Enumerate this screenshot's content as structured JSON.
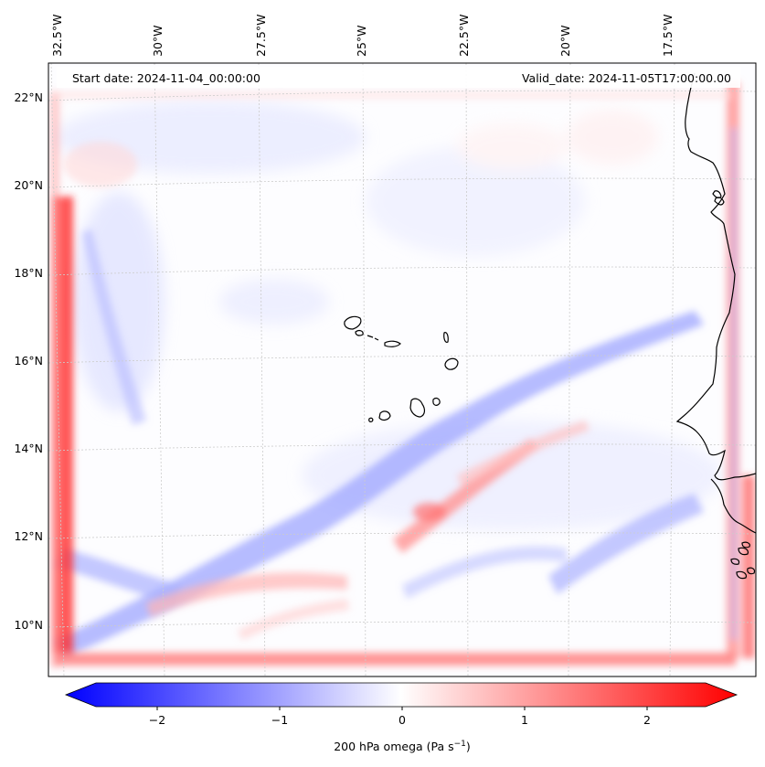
{
  "header": {
    "start_date": "Start date: 2024-11-04_00:00:00",
    "valid_date": "Valid_date: 2024-11-05T17:00:00.00"
  },
  "longitude_labels": [
    "32.5°W",
    "30°W",
    "27.5°W",
    "25°W",
    "22.5°W",
    "20°W",
    "17.5°W"
  ],
  "latitude_labels": [
    "22°N",
    "20°N",
    "18°N",
    "16°N",
    "14°N",
    "12°N",
    "10°N"
  ],
  "colorbar": {
    "ticks": [
      "−2",
      "−1",
      "0",
      "1",
      "2"
    ],
    "label_prefix": "200 hPa omega (Pa s",
    "label_exp": "−1",
    "label_suffix": ")",
    "colors": {
      "negative": "#0000ff",
      "neutral": "#ffffff",
      "positive": "#ff0000"
    },
    "range": [
      -2.7,
      2.7
    ]
  },
  "colors": {
    "coastline": "#000000",
    "gridline": "#cccccc"
  }
}
